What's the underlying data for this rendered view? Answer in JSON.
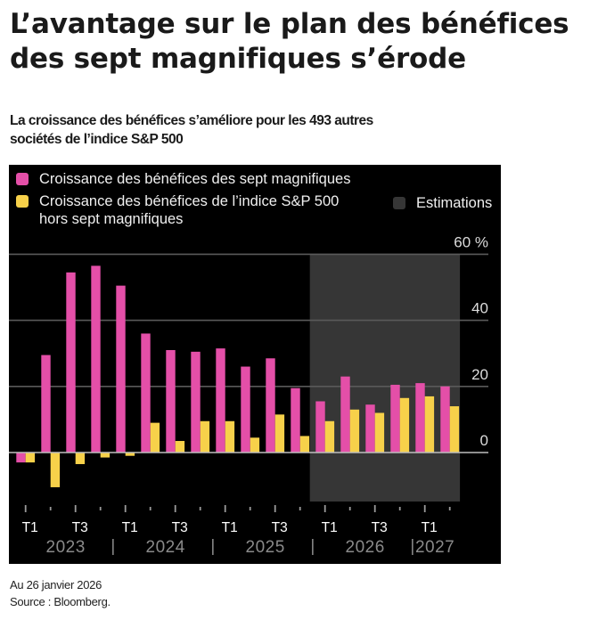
{
  "header": {
    "title_line1": "L’avantage sur le plan des bénéfices",
    "title_line2": "des sept magnifiques s’érode",
    "subtitle_line1": "La croissance des bénéfices s’améliore pour les 493 autres",
    "subtitle_line2": "sociétés de l’indice S&P 500"
  },
  "legend": {
    "items": [
      {
        "label": "Croissance des bénéfices des sept magnifiques",
        "color": "#E44FA8"
      },
      {
        "label_line1": "Croissance des bénéfices de l’indice S&P 500",
        "label_line2": "hors sept magnifiques",
        "color": "#F7D14A"
      },
      {
        "label": "Estimations",
        "color": "#363636"
      }
    ]
  },
  "footer": {
    "date": "Au 26 janvier 2026",
    "source": "Source : Bloomberg."
  },
  "chart_data": {
    "type": "bar",
    "title": "L’avantage sur le plan des bénéfices des sept magnifiques s’érode",
    "subtitle": "La croissance des bénéfices s’améliore pour les 493 autres sociétés de l’indice S&P 500",
    "xlabel": "",
    "ylabel": "%",
    "ylim": [
      -15,
      60
    ],
    "yticks": [
      0,
      20,
      40,
      60
    ],
    "ytick_labels": [
      "0",
      "20",
      "40",
      "60 %"
    ],
    "grid": true,
    "legend_position": "top-left",
    "categories": [
      "T1 2023",
      "T2 2023",
      "T3 2023",
      "T4 2023",
      "T1 2024",
      "T2 2024",
      "T3 2024",
      "T4 2024",
      "T1 2025",
      "T2 2025",
      "T3 2025",
      "T4 2025",
      "T1 2026",
      "T2 2026",
      "T3 2026",
      "T4 2026",
      "T1 2027",
      "T2 2027"
    ],
    "quarter_labels": [
      "T1",
      "",
      "T3",
      "",
      "T1",
      "",
      "T3",
      "",
      "T1",
      "",
      "T3",
      "",
      "T1",
      "",
      "T3",
      "",
      "T1",
      ""
    ],
    "year_labels": [
      {
        "label": "2023",
        "start": 0,
        "end": 3
      },
      {
        "label": "2024",
        "start": 4,
        "end": 7
      },
      {
        "label": "2025",
        "start": 8,
        "end": 11
      },
      {
        "label": "2026",
        "start": 12,
        "end": 15
      },
      {
        "label": "2027",
        "start": 16,
        "end": 17
      }
    ],
    "year_separator": "|",
    "estimates_region": {
      "label": "Estimations",
      "start_index": 11,
      "end_index": 17
    },
    "series": [
      {
        "name": "Croissance des bénéfices des sept magnifiques",
        "color": "#E44FA8",
        "values": [
          -3,
          29.5,
          54.5,
          56.5,
          50.5,
          36,
          31,
          30.5,
          31.5,
          26,
          28.5,
          19.5,
          15.5,
          23,
          14.5,
          20.5,
          21,
          20
        ]
      },
      {
        "name": "Croissance des bénéfices de l’indice S&P 500 hors sept magnifiques",
        "color": "#F7D14A",
        "values": [
          -3,
          -10.5,
          -3.5,
          -1.5,
          -1,
          9,
          3.5,
          9.5,
          9.5,
          4.5,
          11.5,
          5,
          9.5,
          13,
          12,
          16.5,
          17,
          14
        ]
      }
    ]
  }
}
